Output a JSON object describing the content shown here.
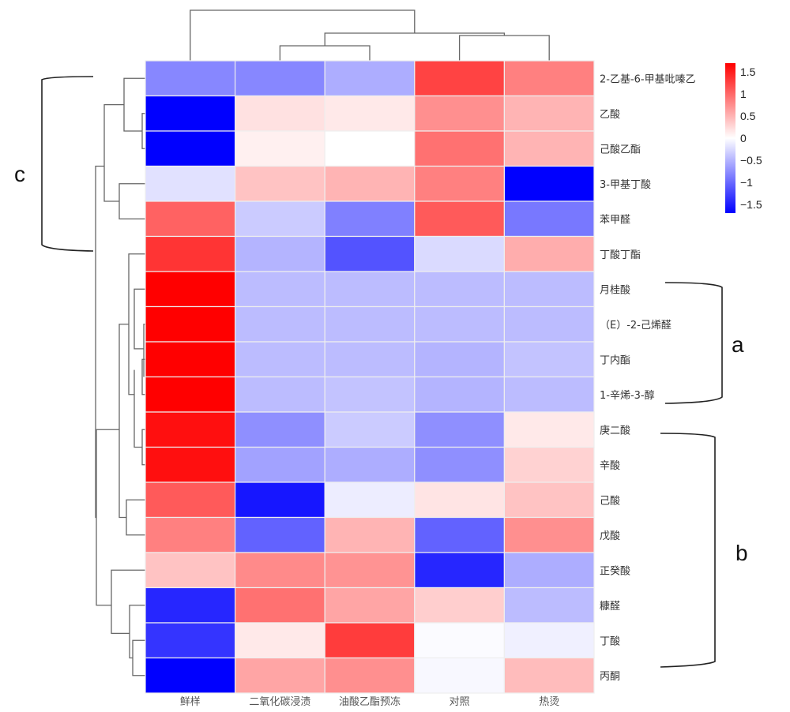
{
  "chart_data": {
    "type": "heatmap",
    "title": "",
    "columns": [
      "鲜样",
      "二氧化碳浸渍",
      "油酸乙酯预冻",
      "对照",
      "热烫"
    ],
    "rows": [
      "2-乙基-6-甲基吡嗪乙",
      "乙酸",
      "己酸乙酯",
      "3-甲基丁酸",
      "苯甲醛",
      "丁酸丁酯",
      "月桂酸",
      "（E）-2-己烯醛",
      "丁内酯",
      "1-辛烯-3-醇",
      "庚二酸",
      "辛酸",
      "己酸",
      "戊酸",
      "正癸酸",
      "糠醛",
      "丁酸",
      "丙酮"
    ],
    "values": [
      [
        -0.8,
        -0.8,
        -0.55,
        1.25,
        0.85
      ],
      [
        -1.7,
        0.2,
        0.15,
        0.75,
        0.5
      ],
      [
        -1.7,
        0.1,
        0.0,
        0.95,
        0.5
      ],
      [
        -0.2,
        0.4,
        0.5,
        0.85,
        -1.7
      ],
      [
        1.05,
        -0.35,
        -0.85,
        1.1,
        -0.9
      ],
      [
        1.35,
        -0.5,
        -1.15,
        -0.25,
        0.55
      ],
      [
        1.75,
        -0.45,
        -0.45,
        -0.45,
        -0.45
      ],
      [
        1.75,
        -0.45,
        -0.45,
        -0.45,
        -0.45
      ],
      [
        1.75,
        -0.45,
        -0.45,
        -0.5,
        -0.4
      ],
      [
        1.75,
        -0.45,
        -0.4,
        -0.5,
        -0.45
      ],
      [
        1.6,
        -0.75,
        -0.35,
        -0.75,
        0.15
      ],
      [
        1.6,
        -0.62,
        -0.55,
        -0.75,
        0.3
      ],
      [
        1.1,
        -1.55,
        -0.12,
        0.18,
        0.4
      ],
      [
        0.85,
        -1.05,
        0.5,
        -1.05,
        0.75
      ],
      [
        0.4,
        0.78,
        0.72,
        -1.45,
        -0.55
      ],
      [
        -1.45,
        0.95,
        0.6,
        0.33,
        -0.45
      ],
      [
        -1.35,
        0.15,
        1.3,
        -0.03,
        -0.1
      ],
      [
        -1.7,
        0.6,
        0.75,
        -0.05,
        0.45
      ]
    ],
    "color_scale": {
      "min": -1.7,
      "max": 1.7,
      "low_color": "#0000ff",
      "mid_color": "#ffffff",
      "high_color": "#ff0000"
    },
    "legend": {
      "position": "top-right",
      "ticks": [
        1.5,
        1,
        0.5,
        0,
        -0.5,
        -1,
        -1.5
      ],
      "tick_labels": [
        "1.5",
        "1",
        "0.5",
        "0",
        "−0.5",
        "−1",
        "−1.5"
      ]
    },
    "row_dendrogram": true,
    "column_dendrogram": true,
    "groups": [
      {
        "label": "c",
        "side": "left",
        "rows": [
          "2-乙基-6-甲基吡嗪乙",
          "乙酸",
          "己酸乙酯",
          "3-甲基丁酸",
          "苯甲醛",
          "丁酸丁酯"
        ]
      },
      {
        "label": "a",
        "side": "right",
        "rows": [
          "月桂酸",
          "（E）-2-己烯醛",
          "丁内酯",
          "1-辛烯-3-醇"
        ]
      },
      {
        "label": "b",
        "side": "right",
        "rows": [
          "庚二酸",
          "辛酸",
          "己酸",
          "戊酸",
          "正癸酸",
          "糠醛",
          "丁酸",
          "丙酮"
        ]
      }
    ],
    "xlabel": "",
    "ylabel": ""
  }
}
